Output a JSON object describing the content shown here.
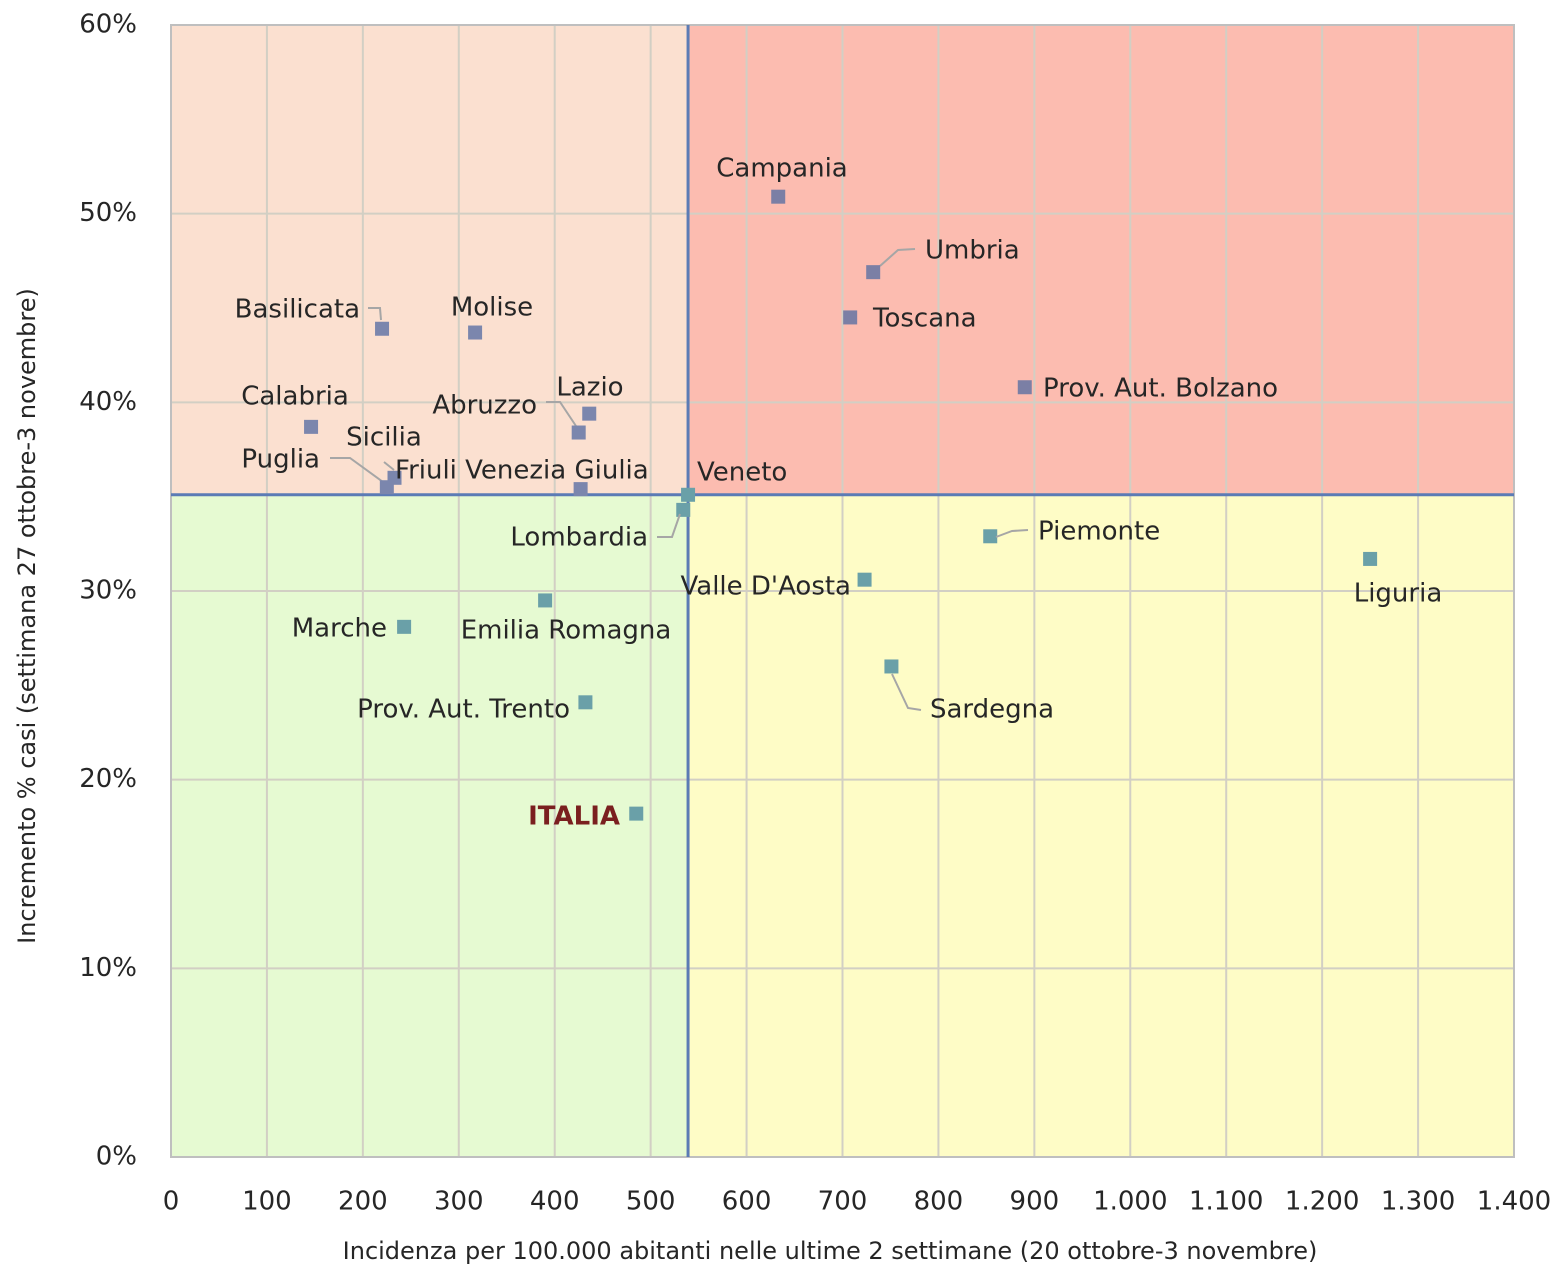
{
  "chart_data": {
    "type": "scatter",
    "xlabel": "Incidenza per 100.000 abitanti nelle ultime 2 settimane (20 ottobre-3 novembre)",
    "ylabel": "Incremento % casi (settimana 27 ottobre-3 novembre)",
    "xlim": [
      0,
      1400
    ],
    "ylim": [
      0,
      60
    ],
    "xticks": [
      0,
      100,
      200,
      300,
      400,
      500,
      600,
      700,
      800,
      900,
      {
        "value": 1000,
        "label": "1.000"
      },
      {
        "value": 1100,
        "label": "1.100"
      },
      {
        "value": 1200,
        "label": "1.200"
      },
      {
        "value": 1300,
        "label": "1.300"
      },
      {
        "value": 1400,
        "label": "1.400"
      }
    ],
    "yticks": [
      {
        "value": 0,
        "label": "0%"
      },
      {
        "value": 10,
        "label": "10%"
      },
      {
        "value": 20,
        "label": "20%"
      },
      {
        "value": 30,
        "label": "30%"
      },
      {
        "value": 40,
        "label": "40%"
      },
      {
        "value": 50,
        "label": "50%"
      },
      {
        "value": 60,
        "label": "60%"
      }
    ],
    "grid": true,
    "quadrant_colors": {
      "top_left": "#fbe0d0",
      "top_right": "#fcbcb0",
      "bottom_left": "#e6fad2",
      "bottom_right": "#fefcc6"
    },
    "reference_line_color": "#5b7bb5",
    "points": [
      {
        "label": "Campania",
        "x": 633,
        "y": 50.9,
        "color": "#7b7fa5"
      },
      {
        "label": "Umbria",
        "x": 732,
        "y": 46.9,
        "color": "#7b7fa5"
      },
      {
        "label": "Toscana",
        "x": 708,
        "y": 44.5,
        "color": "#7b7fa5"
      },
      {
        "label": "Prov. Aut. Bolzano",
        "x": 890,
        "y": 40.8,
        "color": "#7b7fa5"
      },
      {
        "label": "Basilicata",
        "x": 220,
        "y": 43.9,
        "color": "#7b86ad"
      },
      {
        "label": "Molise",
        "x": 317,
        "y": 43.7,
        "color": "#7b86ad"
      },
      {
        "label": "Calabria",
        "x": 146,
        "y": 38.7,
        "color": "#7b86ad"
      },
      {
        "label": "Lazio",
        "x": 436,
        "y": 39.4,
        "color": "#7b86ad"
      },
      {
        "label": "Abruzzo",
        "x": 425,
        "y": 38.4,
        "color": "#7b86ad"
      },
      {
        "label": "Sicilia",
        "x": 233,
        "y": 36.0,
        "color": "#7b86ad"
      },
      {
        "label": "Puglia",
        "x": 225,
        "y": 35.5,
        "color": "#7b86ad"
      },
      {
        "label": "Friuli Venezia Giulia",
        "x": 427,
        "y": 35.4,
        "color": "#7b86ad"
      },
      {
        "label": "Veneto",
        "x": 534,
        "y": 34.3,
        "color": "#6aa0a8"
      },
      {
        "label": "Lombardia",
        "x": 854,
        "y": 32.9,
        "color": "#6aa0a8"
      },
      {
        "label": "Piemonte",
        "x": 723,
        "y": 30.6,
        "color": "#6aa0a8"
      },
      {
        "label": "Valle D'Aosta",
        "x": 1250,
        "y": 31.7,
        "color": "#6aa0a8"
      },
      {
        "label": "Liguria",
        "x": 751,
        "y": 26.0,
        "color": "#6aa0a8"
      },
      {
        "label": "Sardegna",
        "x": 243,
        "y": 28.1,
        "color": "#6aa0a8"
      },
      {
        "label": "Marche",
        "x": 390,
        "y": 29.5,
        "color": "#6aa0a8"
      },
      {
        "label": "Emilia Romagna",
        "x": 432,
        "y": 24.1,
        "color": "#6aa0a8"
      },
      {
        "label": "Prov. Aut. Trento",
        "x": 485,
        "y": 18.2,
        "color": "#6aa0a8"
      },
      {
        "label": "ITALIA",
        "x": 539,
        "y": 35.1,
        "color": "#6aa0a8",
        "reference": true
      }
    ]
  }
}
